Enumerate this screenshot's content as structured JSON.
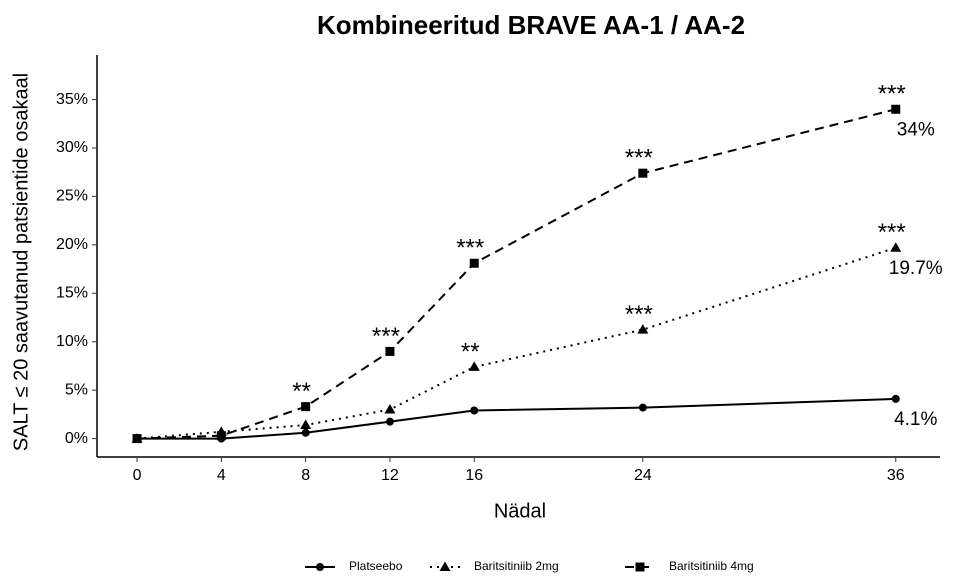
{
  "chart_data": {
    "type": "line",
    "title": "Kombineeritud BRAVE AA-1 / AA-2",
    "x_label": "Nädal",
    "y_label": "SALT ≤ 20 saavutanud patsientide osakaal",
    "x": [
      0,
      4,
      8,
      12,
      16,
      24,
      36
    ],
    "xlim": [
      -1.9,
      38.1
    ],
    "xticks": [
      0,
      4,
      8,
      12,
      16,
      24,
      36
    ],
    "ylim": [
      -1.9,
      39.6
    ],
    "yticks": [
      {
        "value": 0,
        "label": "0%"
      },
      {
        "value": 5,
        "label": "5%"
      },
      {
        "value": 10,
        "label": "10%"
      },
      {
        "value": 15,
        "label": "15%"
      },
      {
        "value": 20,
        "label": "20%"
      },
      {
        "value": 25,
        "label": "25%"
      },
      {
        "value": 30,
        "label": "30%"
      },
      {
        "value": 35,
        "label": "35%"
      }
    ],
    "grid": false,
    "legend": "bottom",
    "series": [
      {
        "name": "Platseebo",
        "color": "#000000",
        "dash": "solid",
        "marker": "circle",
        "values": [
          0,
          0,
          0.6,
          1.75,
          2.9,
          3.2,
          4.1
        ],
        "value_labels": [
          null,
          null,
          null,
          null,
          null,
          null,
          "4.1%"
        ],
        "significance": [
          null,
          null,
          null,
          null,
          null,
          null,
          null
        ]
      },
      {
        "name": "Baritsitiniib 2mg",
        "color": "#000000",
        "dash": "dotted",
        "marker": "triangle",
        "values": [
          0,
          0.7,
          1.4,
          3.0,
          7.4,
          11.25,
          19.7
        ],
        "value_labels": [
          null,
          null,
          null,
          null,
          null,
          null,
          "19.7%"
        ],
        "significance": [
          null,
          null,
          null,
          null,
          "**",
          "***",
          "***"
        ]
      },
      {
        "name": "Baritsitiniib 4mg",
        "color": "#000000",
        "dash": "dashed",
        "marker": "square",
        "values": [
          0,
          0.3,
          3.3,
          9.0,
          18.1,
          27.4,
          34
        ],
        "value_labels": [
          null,
          null,
          null,
          null,
          null,
          null,
          "34%"
        ],
        "significance": [
          null,
          null,
          "**",
          "***",
          "***",
          "***",
          "***"
        ]
      }
    ]
  }
}
